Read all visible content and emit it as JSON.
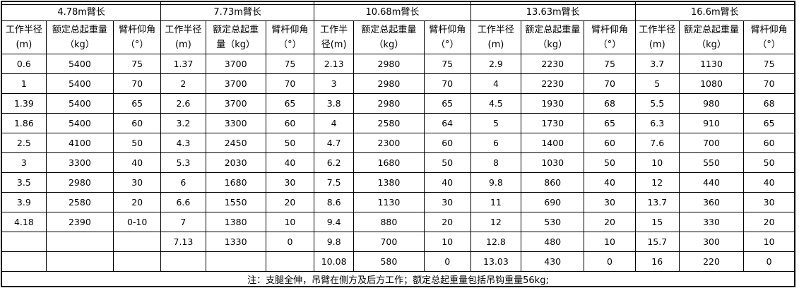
{
  "chart_data": {
    "type": "table",
    "note": "注：支腿全伸，吊臂在侧方及后方工作；额定总起重量包括吊钩重量56kg;",
    "column_semantics": [
      "working_radius_m",
      "rated_total_lifting_weight_kg",
      "boom_elevation_angle_deg"
    ],
    "sections": [
      {
        "boom_label": "4.78m臂长",
        "columns": [
          {
            "line1": "工作半径",
            "line2": "(m)"
          },
          {
            "line1": "额定总起重量",
            "line2": "（kg）"
          },
          {
            "line1": "臂杆仰角",
            "line2": "（°）"
          }
        ],
        "rows": [
          [
            "0.6",
            "5400",
            "75"
          ],
          [
            "1",
            "5400",
            "70"
          ],
          [
            "1.39",
            "5400",
            "65"
          ],
          [
            "1.86",
            "5400",
            "60"
          ],
          [
            "2.5",
            "4100",
            "50"
          ],
          [
            "3",
            "3300",
            "40"
          ],
          [
            "3.5",
            "2980",
            "30"
          ],
          [
            "3.9",
            "2580",
            "20"
          ],
          [
            "4.18",
            "2390",
            "0-10"
          ],
          [
            "",
            "",
            ""
          ],
          [
            "",
            "",
            ""
          ]
        ]
      },
      {
        "boom_label": "7.73m臂长",
        "columns": [
          {
            "line1": "工作半径",
            "line2": "(m)"
          },
          {
            "line1": "额定总起重",
            "line2": "量（kg）"
          },
          {
            "line1": "臂杆仰角",
            "line2": "（°）"
          }
        ],
        "rows": [
          [
            "1.37",
            "3700",
            "75"
          ],
          [
            "2",
            "3700",
            "70"
          ],
          [
            "2.6",
            "3700",
            "65"
          ],
          [
            "3.2",
            "3300",
            "60"
          ],
          [
            "4.3",
            "2450",
            "50"
          ],
          [
            "5.3",
            "2030",
            "40"
          ],
          [
            "6",
            "1680",
            "30"
          ],
          [
            "6.6",
            "1550",
            "20"
          ],
          [
            "7",
            "1380",
            "10"
          ],
          [
            "7.13",
            "1330",
            "0"
          ],
          [
            "",
            "",
            ""
          ]
        ]
      },
      {
        "boom_label": "10.68m臂长",
        "columns": [
          {
            "line1": "工作半",
            "line2": "径(m)"
          },
          {
            "line1": "额定总起重量",
            "line2": "（kg）"
          },
          {
            "line1": "臂杆仰角",
            "line2": "（°）"
          }
        ],
        "rows": [
          [
            "2.13",
            "2980",
            "75"
          ],
          [
            "3",
            "2980",
            "70"
          ],
          [
            "3.8",
            "2980",
            "65"
          ],
          [
            "4",
            "2580",
            "64"
          ],
          [
            "4.7",
            "2300",
            "60"
          ],
          [
            "6.2",
            "1680",
            "50"
          ],
          [
            "7.5",
            "1380",
            "40"
          ],
          [
            "8.6",
            "1130",
            "30"
          ],
          [
            "9.4",
            "880",
            "20"
          ],
          [
            "9.8",
            "700",
            "10"
          ],
          [
            "10.08",
            "580",
            "0"
          ]
        ]
      },
      {
        "boom_label": "13.63m臂长",
        "columns": [
          {
            "line1": "工作半径",
            "line2": "(m)"
          },
          {
            "line1": "额定总起重量",
            "line2": "（kg）"
          },
          {
            "line1": "臂杆仰角",
            "line2": "（°）"
          }
        ],
        "rows": [
          [
            "2.9",
            "2230",
            "75"
          ],
          [
            "4",
            "2230",
            "70"
          ],
          [
            "4.5",
            "1930",
            "68"
          ],
          [
            "5",
            "1730",
            "65"
          ],
          [
            "6",
            "1400",
            "60"
          ],
          [
            "8",
            "1030",
            "50"
          ],
          [
            "9.8",
            "860",
            "40"
          ],
          [
            "11",
            "690",
            "30"
          ],
          [
            "12",
            "530",
            "20"
          ],
          [
            "12.8",
            "480",
            "10"
          ],
          [
            "13.03",
            "430",
            "0"
          ]
        ]
      },
      {
        "boom_label": "16.6m臂长",
        "columns": [
          {
            "line1": "工作半径",
            "line2": "(m)"
          },
          {
            "line1": "额定总起重量",
            "line2": "（kg）"
          },
          {
            "line1": "臂杆仰角",
            "line2": "（°）"
          }
        ],
        "rows": [
          [
            "3.7",
            "1130",
            "75"
          ],
          [
            "5",
            "1080",
            "70"
          ],
          [
            "5.5",
            "980",
            "68"
          ],
          [
            "6.3",
            "910",
            "65"
          ],
          [
            "7.6",
            "700",
            "60"
          ],
          [
            "10",
            "550",
            "50"
          ],
          [
            "12",
            "440",
            "40"
          ],
          [
            "13.7",
            "360",
            "30"
          ],
          [
            "15",
            "330",
            "20"
          ],
          [
            "15.7",
            "300",
            "10"
          ],
          [
            "16",
            "220",
            "0"
          ]
        ]
      }
    ]
  }
}
